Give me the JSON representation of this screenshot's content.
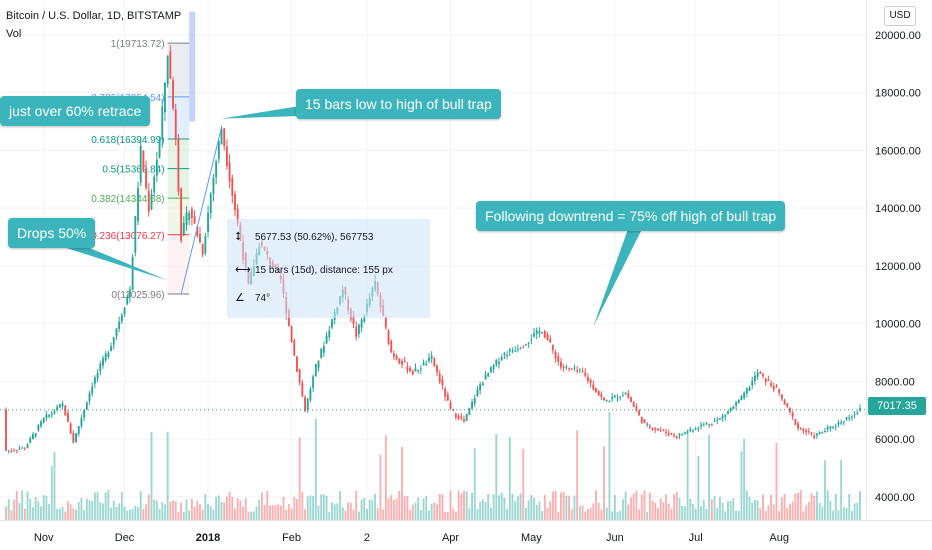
{
  "header": {
    "title": "Bitcoin / U.S. Dollar, 1D, BITSTAMP",
    "indicator": "Vol"
  },
  "currency_button": "USD",
  "last_price_label": "7017.35",
  "colors": {
    "up": "#26a69a",
    "down": "#ef5350",
    "callout": "#3cb4bc",
    "measure_box": "#cce4f8",
    "fib_levels": [
      "#787b86",
      "#5b9cf6",
      "#089981",
      "#089981",
      "#4caf50",
      "#f23645",
      "#787b86"
    ]
  },
  "callouts": {
    "retrace": "just over 60% retrace",
    "drops": "Drops 50%",
    "bull_trap": "15 bars low to high of bull trap",
    "downtrend": "Following downtrend = 75% off high of bull trap"
  },
  "measure": {
    "price_change": "5677.53 (50.62%), 567753",
    "bars": "15 bars (15d), distance: 155 px",
    "angle": "74°",
    "price_icon": "price-range-icon",
    "bars_icon": "bars-range-icon",
    "angle_icon": "angle-icon"
  },
  "chart_data": {
    "type": "candlestick",
    "title": "Bitcoin / U.S. Dollar, 1D, BITSTAMP",
    "y_axis": {
      "ticks": [
        "20000.00",
        "18000.00",
        "16000.00",
        "14000.00",
        "12000.00",
        "10000.00",
        "8000.00",
        "6000.00",
        "4000.00"
      ],
      "ylim": [
        3200,
        21000
      ]
    },
    "x_axis": {
      "ticks": [
        "Nov",
        "Dec",
        "2018",
        "Feb",
        "2",
        "Apr",
        "May",
        "Jun",
        "Jul",
        "Aug"
      ],
      "range": [
        "2017-10-18",
        "2018-08-31"
      ]
    },
    "fib_retracement": [
      {
        "label": "1(19713.72)",
        "ratio": 1,
        "price": 19713.72
      },
      {
        "label": "0.786(17854.54)",
        "ratio": 0.786,
        "price": 17854.54
      },
      {
        "label": "0.618(16394.99)",
        "ratio": 0.618,
        "price": 16394.99
      },
      {
        "label": "0.5(15369.84)",
        "ratio": 0.5,
        "price": 15369.84
      },
      {
        "label": "0.382(14344.68)",
        "ratio": 0.382,
        "price": 14344.68
      },
      {
        "label": "0.236(13076.27)",
        "ratio": 0.236,
        "price": 13076.27
      },
      {
        "label": "0(11025.96)",
        "ratio": 0,
        "price": 11025.96
      }
    ],
    "price_path": [
      [
        "2017-10-18",
        5600
      ],
      [
        "2017-10-25",
        5700
      ],
      [
        "2017-11-01",
        6700
      ],
      [
        "2017-11-08",
        7200
      ],
      [
        "2017-11-12",
        5900
      ],
      [
        "2017-11-19",
        7900
      ],
      [
        "2017-11-26",
        9300
      ],
      [
        "2017-12-03",
        11200
      ],
      [
        "2017-12-07",
        16000
      ],
      [
        "2017-12-10",
        14000
      ],
      [
        "2017-12-14",
        16300
      ],
      [
        "2017-12-17",
        19400
      ],
      [
        "2017-12-20",
        16500
      ],
      [
        "2017-12-22",
        13000
      ],
      [
        "2017-12-25",
        14000
      ],
      [
        "2017-12-30",
        12500
      ],
      [
        "2018-01-02",
        14500
      ],
      [
        "2018-01-06",
        16800
      ],
      [
        "2018-01-10",
        14500
      ],
      [
        "2018-01-16",
        11300
      ],
      [
        "2018-01-20",
        12800
      ],
      [
        "2018-01-28",
        11500
      ],
      [
        "2018-02-02",
        8900
      ],
      [
        "2018-02-06",
        7000
      ],
      [
        "2018-02-10",
        8500
      ],
      [
        "2018-02-20",
        11200
      ],
      [
        "2018-02-25",
        9600
      ],
      [
        "2018-03-04",
        11400
      ],
      [
        "2018-03-10",
        9000
      ],
      [
        "2018-03-18",
        8300
      ],
      [
        "2018-03-25",
        8800
      ],
      [
        "2018-04-01",
        7000
      ],
      [
        "2018-04-06",
        6600
      ],
      [
        "2018-04-12",
        7900
      ],
      [
        "2018-04-20",
        8900
      ],
      [
        "2018-04-28",
        9300
      ],
      [
        "2018-05-05",
        9800
      ],
      [
        "2018-05-12",
        8500
      ],
      [
        "2018-05-20",
        8300
      ],
      [
        "2018-05-28",
        7300
      ],
      [
        "2018-06-05",
        7600
      ],
      [
        "2018-06-12",
        6500
      ],
      [
        "2018-06-24",
        6100
      ],
      [
        "2018-07-01",
        6400
      ],
      [
        "2018-07-10",
        6700
      ],
      [
        "2018-07-18",
        7400
      ],
      [
        "2018-07-24",
        8300
      ],
      [
        "2018-07-31",
        7700
      ],
      [
        "2018-08-08",
        6400
      ],
      [
        "2018-08-14",
        6100
      ],
      [
        "2018-08-22",
        6500
      ],
      [
        "2018-08-31",
        7017.35
      ]
    ],
    "last_price": 7017.35
  }
}
